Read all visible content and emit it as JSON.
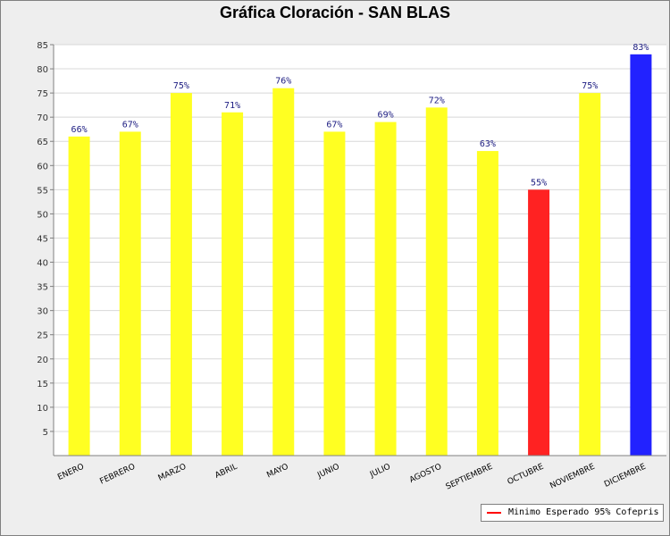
{
  "chart_data": {
    "type": "bar",
    "title": "Gráfica Cloración - SAN BLAS",
    "categories": [
      "ENERO",
      "FEBRERO",
      "MARZO",
      "ABRIL",
      "MAYO",
      "JUNIO",
      "JULIO",
      "AGOSTO",
      "SEPTIEMBRE",
      "OCTUBRE",
      "NOVIEMBRE",
      "DICIEMBRE"
    ],
    "values": [
      66,
      67,
      75,
      71,
      76,
      67,
      69,
      72,
      63,
      55,
      75,
      83
    ],
    "value_labels": [
      "66%",
      "67%",
      "75%",
      "71%",
      "76%",
      "67%",
      "69%",
      "72%",
      "63%",
      "55%",
      "75%",
      "83%"
    ],
    "bar_colors": [
      "#ffff22",
      "#ffff22",
      "#ffff22",
      "#ffff22",
      "#ffff22",
      "#ffff22",
      "#ffff22",
      "#ffff22",
      "#ffff22",
      "#ff2222",
      "#ffff22",
      "#2222ff"
    ],
    "ylim": [
      0,
      85
    ],
    "yticks": [
      5,
      10,
      15,
      20,
      25,
      30,
      35,
      40,
      45,
      50,
      55,
      60,
      65,
      70,
      75,
      80,
      85
    ],
    "xlabel": "",
    "ylabel": "",
    "grid": true,
    "legend": {
      "position": "bottom-right",
      "entries": [
        {
          "label": "Minimo Esperado 95% Cofepris",
          "color": "#ff0000"
        }
      ]
    }
  }
}
